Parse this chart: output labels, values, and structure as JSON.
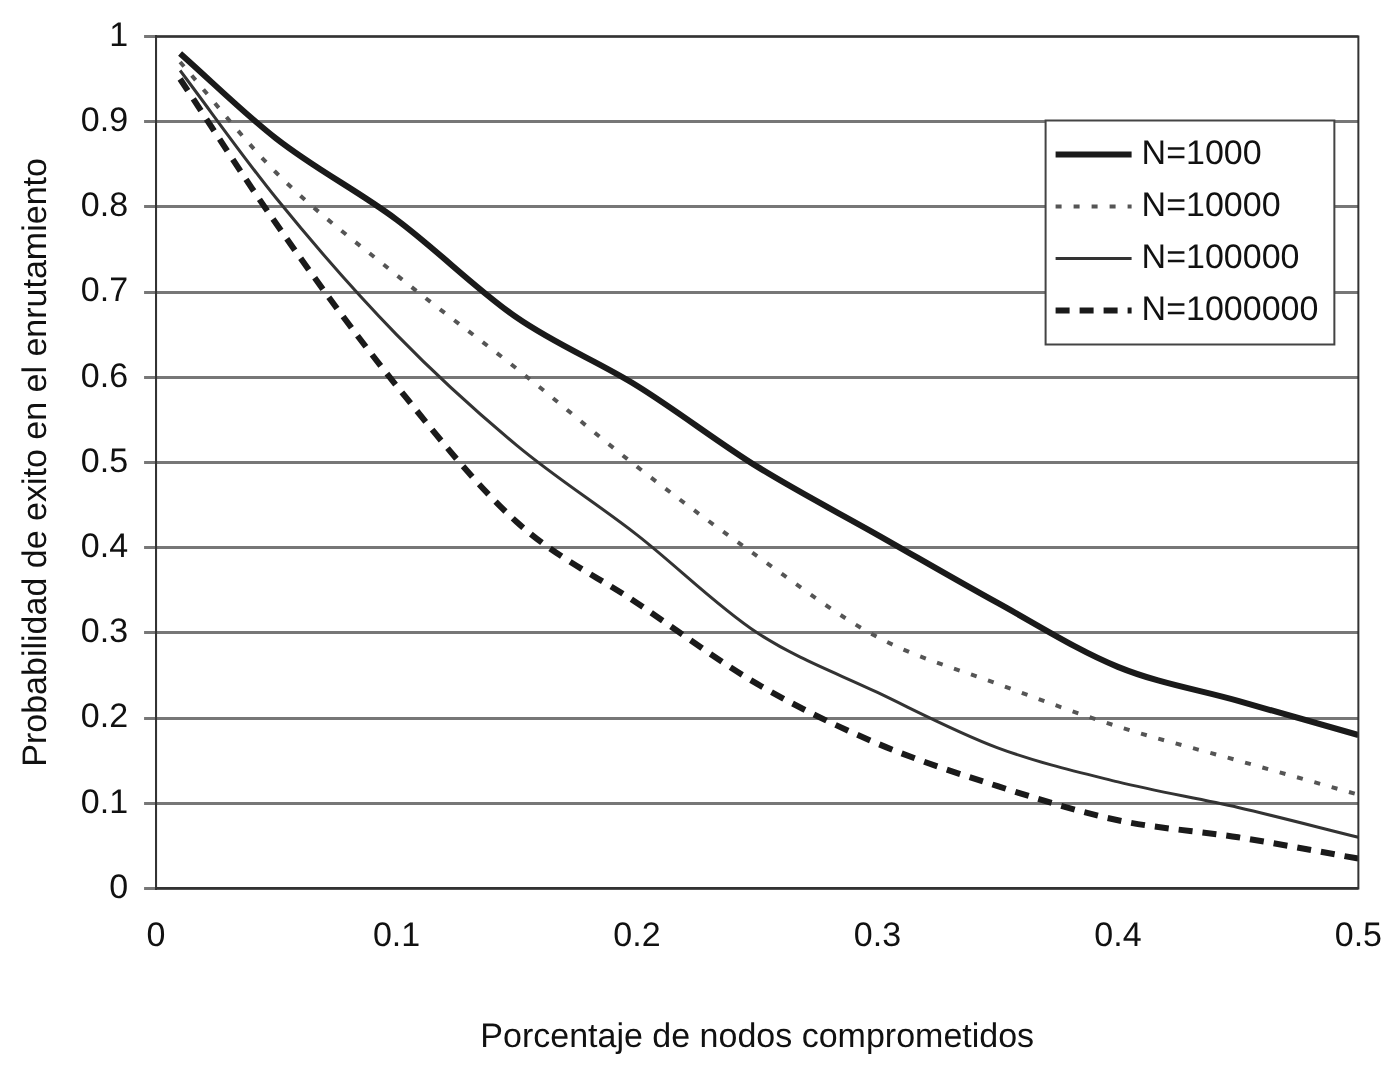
{
  "chart_data": {
    "type": "line",
    "xlabel": "Porcentaje de nodos comprometidos",
    "ylabel": "Probabilidad de exito en el enrutamiento",
    "x": [
      0.01,
      0.05,
      0.1,
      0.15,
      0.2,
      0.25,
      0.3,
      0.35,
      0.4,
      0.45,
      0.5
    ],
    "xlim": [
      0,
      0.5
    ],
    "xticks": [
      0,
      0.1,
      0.2,
      0.3,
      0.4,
      0.5
    ],
    "ylim": [
      0,
      1
    ],
    "yticks": [
      0,
      0.1,
      0.2,
      0.3,
      0.4,
      0.5,
      0.6,
      0.7,
      0.8,
      0.9,
      1
    ],
    "grid": "y",
    "legend": "top right",
    "marker": "none",
    "series": [
      {
        "name": "N=1000",
        "color": "#1a1a1a",
        "line_style": "solid",
        "values": [
          0.98,
          0.88,
          0.785,
          0.67,
          0.59,
          0.495,
          0.415,
          0.335,
          0.26,
          0.22,
          0.18
        ]
      },
      {
        "name": "N=10000",
        "color": "#555555",
        "line_style": "dotted",
        "values": [
          0.97,
          0.84,
          0.72,
          0.61,
          0.495,
          0.39,
          0.295,
          0.24,
          0.19,
          0.15,
          0.11
        ]
      },
      {
        "name": "N=100000",
        "color": "#333333",
        "line_style": "solid",
        "values": [
          0.96,
          0.81,
          0.65,
          0.52,
          0.415,
          0.3,
          0.23,
          0.165,
          0.125,
          0.095,
          0.06
        ]
      },
      {
        "name": "N=1000000",
        "color": "#1a1a1a",
        "line_style": "dashed",
        "values": [
          0.95,
          0.78,
          0.59,
          0.43,
          0.335,
          0.24,
          0.17,
          0.12,
          0.08,
          0.06,
          0.035
        ]
      }
    ]
  }
}
